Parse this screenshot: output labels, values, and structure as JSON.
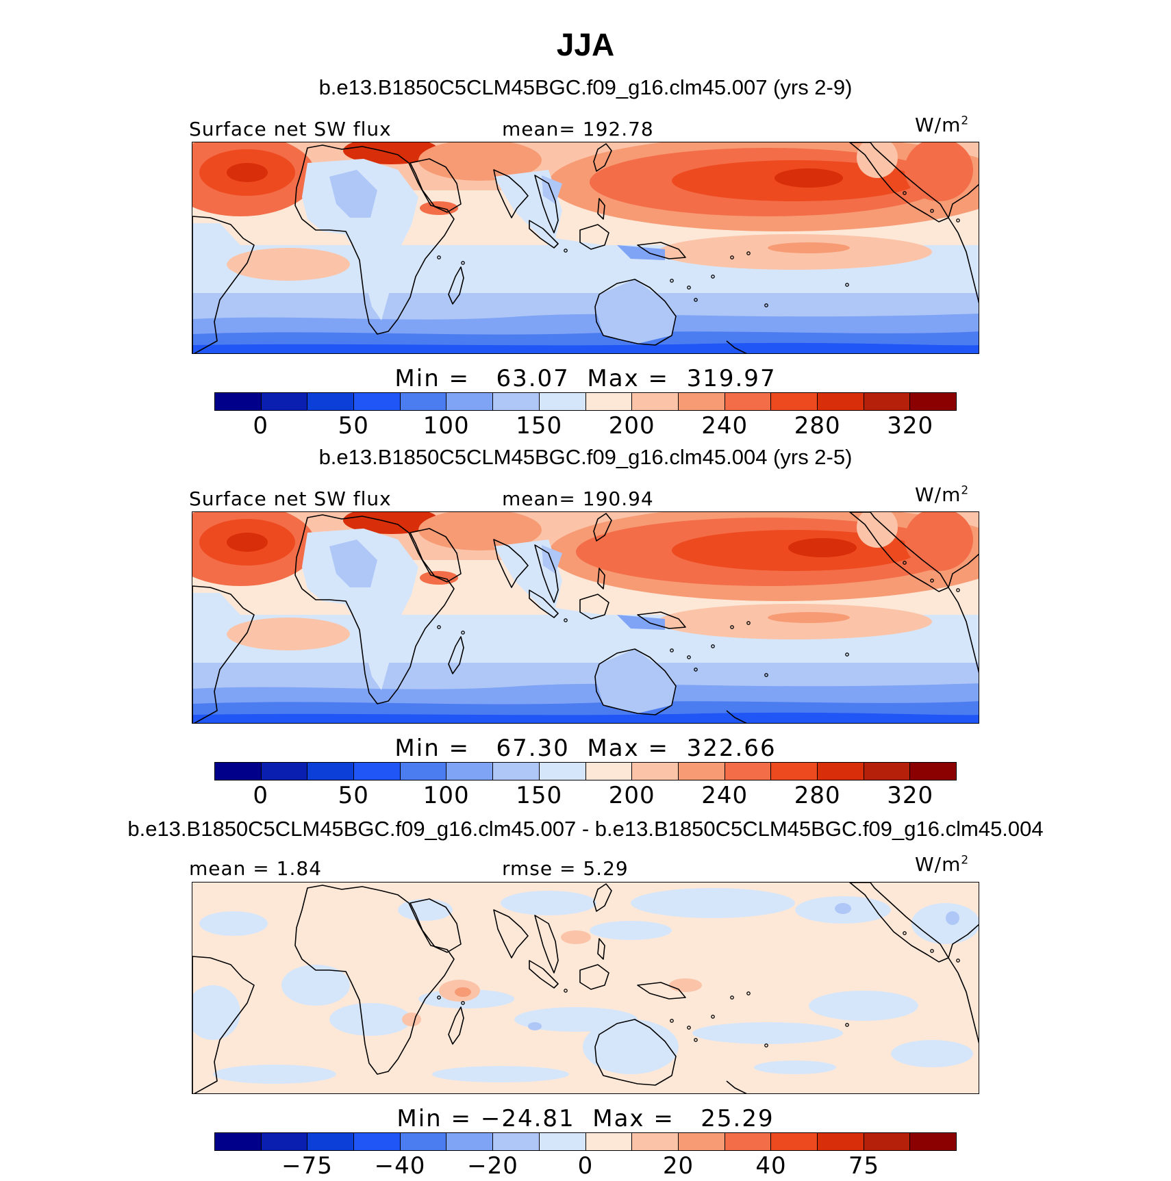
{
  "figure": {
    "title": "JJA"
  },
  "palette": [
    "#00008b",
    "#0a1fb0",
    "#0c3fd8",
    "#1f56f5",
    "#4b7cf0",
    "#7fa3f5",
    "#aec7f7",
    "#d6e6fa",
    "#fde8d8",
    "#fbc4a8",
    "#f79b75",
    "#f26d48",
    "#ee4a1f",
    "#d82e0a",
    "#b5200a",
    "#8b0000"
  ],
  "coastline_color": "#000000",
  "panels": [
    {
      "id": "top",
      "case_title": "b.e13.B1850C5CLM45BGC.f09_g16.clm45.007 (yrs 2-9)",
      "left_label": "Surface net SW flux",
      "center_label": "mean= 192.78",
      "units": {
        "base": "W/m",
        "exp": "2"
      },
      "minmax": "Min =   63.07  Max =  319.97",
      "colorbar_ticks": [
        "0",
        "50",
        "100",
        "150",
        "200",
        "240",
        "280",
        "320"
      ],
      "field": "abs"
    },
    {
      "id": "middle",
      "case_title": "b.e13.B1850C5CLM45BGC.f09_g16.clm45.004 (yrs 2-5)",
      "left_label": "Surface net SW flux",
      "center_label": "mean= 190.94",
      "units": {
        "base": "W/m",
        "exp": "2"
      },
      "minmax": "Min =   67.30  Max =  322.66",
      "colorbar_ticks": [
        "0",
        "50",
        "100",
        "150",
        "200",
        "240",
        "280",
        "320"
      ],
      "field": "abs"
    },
    {
      "id": "bottom",
      "case_title": "b.e13.B1850C5CLM45BGC.f09_g16.clm45.007 - b.e13.B1850C5CLM45BGC.f09_g16.clm45.004",
      "left_label": "mean =    1.84",
      "center_label": "rmse =    5.29",
      "units": {
        "base": "W/m",
        "exp": "2"
      },
      "minmax": "Min = −24.81  Max =   25.29",
      "colorbar_ticks": [
        "−75",
        "−40",
        "−20",
        "0",
        "20",
        "40",
        "75"
      ],
      "field": "diff"
    }
  ]
}
